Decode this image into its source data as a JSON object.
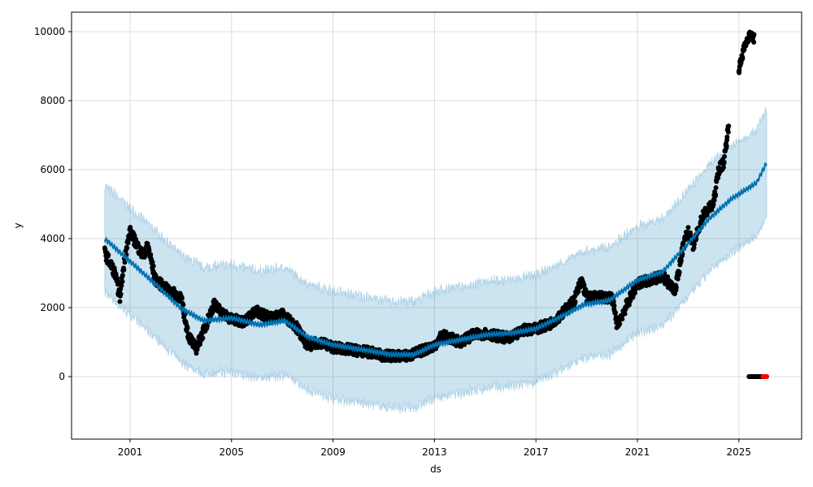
{
  "chart_data": {
    "type": "line",
    "title": "",
    "xlabel": "ds",
    "ylabel": "y",
    "xlim": [
      1997.7,
      2026.5
    ],
    "ylim": [
      -1800,
      10550
    ],
    "grid": true,
    "x_ticks": [
      "2001",
      "2005",
      "2009",
      "2013",
      "2017",
      "2021",
      "2025"
    ],
    "x_tick_values": [
      2001,
      2005,
      2009,
      2013,
      2017,
      2021,
      2025
    ],
    "y_ticks": [
      "0",
      "2000",
      "4000",
      "6000",
      "8000",
      "10000"
    ],
    "y_tick_values": [
      0,
      2000,
      4000,
      6000,
      8000,
      10000
    ],
    "colors": {
      "forecast": "#0072B2",
      "band": "#0072B2",
      "actual": "#000000",
      "future": "#ff0000"
    },
    "series": [
      {
        "name": "yhat",
        "points": [
          [
            2000.0,
            4000
          ],
          [
            2001,
            3340
          ],
          [
            2002,
            2680
          ],
          [
            2003,
            1980
          ],
          [
            2003.9,
            1620
          ],
          [
            2005,
            1700
          ],
          [
            2006.1,
            1500
          ],
          [
            2007.1,
            1620
          ],
          [
            2008,
            1150
          ],
          [
            2009,
            920
          ],
          [
            2010,
            800
          ],
          [
            2011.3,
            640
          ],
          [
            2012.2,
            640
          ],
          [
            2013,
            920
          ],
          [
            2014.1,
            1080
          ],
          [
            2015.1,
            1220
          ],
          [
            2016.1,
            1270
          ],
          [
            2017,
            1390
          ],
          [
            2018,
            1740
          ],
          [
            2018.9,
            2090
          ],
          [
            2019.9,
            2210
          ],
          [
            2021,
            2800
          ],
          [
            2022,
            3040
          ],
          [
            2023,
            3860
          ],
          [
            2023.8,
            4560
          ],
          [
            2024.7,
            5150
          ],
          [
            2025.7,
            5620
          ],
          [
            2026.1,
            6210
          ]
        ]
      },
      {
        "name": "yhat_band_halfwidth",
        "value": 1550
      },
      {
        "name": "actual",
        "points": [
          [
            2000,
            3600
          ],
          [
            2000.4,
            3000
          ],
          [
            2000.6,
            2300
          ],
          [
            2000.8,
            3500
          ],
          [
            2001,
            4200
          ],
          [
            2001.5,
            3500
          ],
          [
            2001.7,
            3800
          ],
          [
            2002,
            2800
          ],
          [
            2002.5,
            2500
          ],
          [
            2003,
            2300
          ],
          [
            2003.3,
            1200
          ],
          [
            2003.6,
            800
          ],
          [
            2004,
            1500
          ],
          [
            2004.3,
            2100
          ],
          [
            2004.7,
            1800
          ],
          [
            2005,
            1650
          ],
          [
            2005.5,
            1600
          ],
          [
            2006,
            1900
          ],
          [
            2006.5,
            1700
          ],
          [
            2007,
            1800
          ],
          [
            2007.5,
            1500
          ],
          [
            2008,
            900
          ],
          [
            2008.5,
            1000
          ],
          [
            2009,
            850
          ],
          [
            2010,
            750
          ],
          [
            2010.5,
            700
          ],
          [
            2011,
            600
          ],
          [
            2012,
            600
          ],
          [
            2013,
            900
          ],
          [
            2013.3,
            1200
          ],
          [
            2014,
            1000
          ],
          [
            2014.5,
            1200
          ],
          [
            2015,
            1250
          ],
          [
            2016,
            1100
          ],
          [
            2016.5,
            1350
          ],
          [
            2017,
            1400
          ],
          [
            2017.5,
            1500
          ],
          [
            2018,
            1800
          ],
          [
            2018.5,
            2200
          ],
          [
            2018.8,
            2800
          ],
          [
            2019,
            2300
          ],
          [
            2020,
            2300
          ],
          [
            2020.2,
            1500
          ],
          [
            2020.6,
            2100
          ],
          [
            2021,
            2700
          ],
          [
            2021.5,
            2800
          ],
          [
            2022,
            2900
          ],
          [
            2022.5,
            2500
          ],
          [
            2022.8,
            3800
          ],
          [
            2023,
            4200
          ],
          [
            2023.2,
            3800
          ],
          [
            2023.6,
            4700
          ],
          [
            2024,
            5000
          ],
          [
            2024.2,
            6000
          ],
          [
            2024.4,
            6200
          ],
          [
            2024.6,
            7300
          ]
        ]
      },
      {
        "name": "actual_recent",
        "points": [
          [
            2025.0,
            8900
          ],
          [
            2025.1,
            9200
          ],
          [
            2025.2,
            9500
          ],
          [
            2025.3,
            9700
          ],
          [
            2025.4,
            9900
          ],
          [
            2025.6,
            9800
          ]
        ]
      },
      {
        "name": "actual_zero",
        "points": [
          [
            2025.4,
            0
          ],
          [
            2025.9,
            0
          ]
        ]
      },
      {
        "name": "future_points",
        "points": [
          [
            2025.95,
            0
          ],
          [
            2026.1,
            0
          ]
        ]
      }
    ]
  }
}
